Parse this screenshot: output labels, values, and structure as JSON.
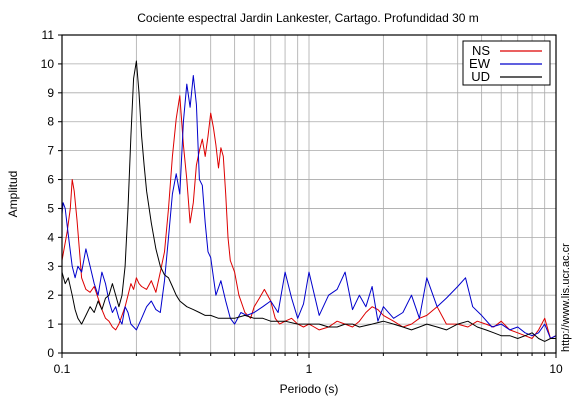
{
  "chart_data": {
    "type": "line",
    "title": "Cociente espectral Jardin Lankester, Cartago. Profundidad 30 m",
    "xlabel": "Periodo (s)",
    "ylabel": "Amplitud",
    "xscale": "log",
    "xlim": [
      0.1,
      10
    ],
    "ylim": [
      0,
      11
    ],
    "x_tick_labels": [
      {
        "value": 0.1,
        "label": "0.1"
      },
      {
        "value": 1,
        "label": "1"
      },
      {
        "value": 10,
        "label": "10"
      }
    ],
    "y_ticks": [
      0,
      1,
      2,
      3,
      4,
      5,
      6,
      7,
      8,
      9,
      10,
      11
    ],
    "grid": true,
    "legend_position": "top-right",
    "side_text": "http://www.lis.ucr.ac.cr",
    "series": [
      {
        "name": "NS",
        "color": "#dd0000",
        "x": [
          0.1,
          0.102,
          0.105,
          0.108,
          0.11,
          0.112,
          0.115,
          0.118,
          0.12,
          0.125,
          0.13,
          0.135,
          0.14,
          0.145,
          0.15,
          0.155,
          0.16,
          0.165,
          0.17,
          0.175,
          0.18,
          0.185,
          0.19,
          0.195,
          0.2,
          0.205,
          0.21,
          0.22,
          0.23,
          0.24,
          0.25,
          0.26,
          0.27,
          0.28,
          0.29,
          0.3,
          0.31,
          0.32,
          0.33,
          0.34,
          0.35,
          0.36,
          0.37,
          0.38,
          0.39,
          0.4,
          0.41,
          0.42,
          0.43,
          0.44,
          0.45,
          0.46,
          0.47,
          0.48,
          0.5,
          0.52,
          0.55,
          0.58,
          0.6,
          0.63,
          0.66,
          0.7,
          0.73,
          0.76,
          0.8,
          0.85,
          0.9,
          0.95,
          1.0,
          1.05,
          1.1,
          1.2,
          1.3,
          1.4,
          1.5,
          1.6,
          1.7,
          1.8,
          1.9,
          2.0,
          2.2,
          2.4,
          2.6,
          2.8,
          3.0,
          3.3,
          3.6,
          4.0,
          4.4,
          4.8,
          5.2,
          5.6,
          6.0,
          6.5,
          7.0,
          7.5,
          8.0,
          8.5,
          9.0,
          9.5,
          10.0
        ],
        "y": [
          3.2,
          3.6,
          4.2,
          5.0,
          6.0,
          5.6,
          4.6,
          3.4,
          2.6,
          2.2,
          2.1,
          2.3,
          1.9,
          1.5,
          1.2,
          1.1,
          0.9,
          0.8,
          1.0,
          1.3,
          1.6,
          2.0,
          2.4,
          2.2,
          2.6,
          2.4,
          2.3,
          2.2,
          2.5,
          2.1,
          2.8,
          3.5,
          5.0,
          6.8,
          8.1,
          8.9,
          7.2,
          6.0,
          4.5,
          5.2,
          6.5,
          7.0,
          7.4,
          6.8,
          7.5,
          8.3,
          7.8,
          7.2,
          6.4,
          7.1,
          6.8,
          5.5,
          4.0,
          3.2,
          2.8,
          2.0,
          1.4,
          1.2,
          1.6,
          1.9,
          2.2,
          1.8,
          1.2,
          1.0,
          1.1,
          1.2,
          1.0,
          0.9,
          1.0,
          0.9,
          0.8,
          0.9,
          1.1,
          1.0,
          0.9,
          1.1,
          1.4,
          1.6,
          1.5,
          1.3,
          1.1,
          0.9,
          1.0,
          1.2,
          1.3,
          1.6,
          1.0,
          1.0,
          0.9,
          1.1,
          1.0,
          0.9,
          1.1,
          0.8,
          0.7,
          0.6,
          0.5,
          0.8,
          1.2,
          0.5,
          0.6
        ]
      },
      {
        "name": "EW",
        "color": "#0000cc",
        "x": [
          0.1,
          0.101,
          0.103,
          0.105,
          0.107,
          0.11,
          0.113,
          0.116,
          0.12,
          0.125,
          0.13,
          0.135,
          0.14,
          0.145,
          0.15,
          0.155,
          0.16,
          0.165,
          0.17,
          0.175,
          0.18,
          0.185,
          0.19,
          0.2,
          0.21,
          0.22,
          0.23,
          0.24,
          0.25,
          0.26,
          0.27,
          0.28,
          0.29,
          0.3,
          0.31,
          0.32,
          0.33,
          0.34,
          0.35,
          0.36,
          0.37,
          0.38,
          0.39,
          0.4,
          0.42,
          0.44,
          0.46,
          0.48,
          0.5,
          0.53,
          0.56,
          0.6,
          0.65,
          0.7,
          0.75,
          0.8,
          0.85,
          0.9,
          0.95,
          1.0,
          1.1,
          1.2,
          1.3,
          1.4,
          1.5,
          1.6,
          1.7,
          1.8,
          1.9,
          2.0,
          2.2,
          2.4,
          2.6,
          2.8,
          3.0,
          3.3,
          3.6,
          4.0,
          4.3,
          4.6,
          5.0,
          5.5,
          6.0,
          6.5,
          7.0,
          7.5,
          8.0,
          8.5,
          9.0,
          9.5,
          10.0
        ],
        "y": [
          4.8,
          5.2,
          5.0,
          4.4,
          3.8,
          3.0,
          2.6,
          3.0,
          2.8,
          3.6,
          3.0,
          2.4,
          2.0,
          2.8,
          2.4,
          1.8,
          1.4,
          1.6,
          1.2,
          1.0,
          1.6,
          1.4,
          1.0,
          0.8,
          1.2,
          1.6,
          1.8,
          1.5,
          1.4,
          2.5,
          4.0,
          5.5,
          6.2,
          5.5,
          8.0,
          9.3,
          8.5,
          9.6,
          8.6,
          6.0,
          5.8,
          4.5,
          3.5,
          3.3,
          2.0,
          2.5,
          1.8,
          1.2,
          1.0,
          1.4,
          1.3,
          1.4,
          1.6,
          1.8,
          1.4,
          2.8,
          1.9,
          1.2,
          1.7,
          2.8,
          1.3,
          2.0,
          2.2,
          2.8,
          1.5,
          2.0,
          1.6,
          2.3,
          1.1,
          1.6,
          1.2,
          1.4,
          2.0,
          1.2,
          2.6,
          1.6,
          1.9,
          2.3,
          2.6,
          1.6,
          1.3,
          0.9,
          1.0,
          0.8,
          0.9,
          0.7,
          0.6,
          0.7,
          1.0,
          0.5,
          0.6
        ]
      },
      {
        "name": "UD",
        "color": "#000000",
        "x": [
          0.1,
          0.103,
          0.106,
          0.11,
          0.113,
          0.116,
          0.12,
          0.125,
          0.13,
          0.135,
          0.14,
          0.145,
          0.15,
          0.155,
          0.16,
          0.165,
          0.17,
          0.175,
          0.18,
          0.185,
          0.19,
          0.195,
          0.2,
          0.205,
          0.21,
          0.215,
          0.22,
          0.23,
          0.24,
          0.25,
          0.26,
          0.27,
          0.28,
          0.29,
          0.3,
          0.32,
          0.34,
          0.36,
          0.38,
          0.4,
          0.43,
          0.46,
          0.5,
          0.55,
          0.6,
          0.65,
          0.7,
          0.75,
          0.8,
          0.9,
          1.0,
          1.1,
          1.2,
          1.3,
          1.4,
          1.5,
          1.6,
          1.8,
          2.0,
          2.2,
          2.4,
          2.6,
          2.8,
          3.0,
          3.3,
          3.6,
          4.0,
          4.4,
          4.8,
          5.2,
          5.6,
          6.0,
          6.5,
          7.0,
          7.5,
          8.0,
          8.5,
          9.0,
          9.5,
          10.0
        ],
        "y": [
          2.8,
          2.4,
          2.6,
          2.0,
          1.5,
          1.2,
          1.0,
          1.3,
          1.6,
          1.4,
          1.8,
          1.5,
          1.9,
          2.0,
          2.4,
          2.0,
          1.6,
          2.0,
          3.0,
          5.0,
          7.5,
          9.5,
          10.1,
          9.0,
          7.5,
          6.5,
          5.6,
          4.5,
          3.6,
          3.0,
          2.7,
          2.6,
          2.3,
          2.0,
          1.8,
          1.6,
          1.5,
          1.4,
          1.3,
          1.3,
          1.2,
          1.2,
          1.2,
          1.3,
          1.2,
          1.2,
          1.1,
          1.1,
          1.1,
          1.0,
          1.0,
          1.0,
          0.9,
          0.9,
          1.0,
          1.0,
          0.9,
          1.0,
          1.1,
          1.0,
          0.9,
          0.8,
          0.9,
          1.0,
          0.9,
          0.8,
          1.0,
          1.1,
          0.9,
          0.8,
          0.7,
          0.6,
          0.6,
          0.5,
          0.6,
          0.7,
          0.5,
          0.4,
          0.5,
          0.5
        ]
      }
    ]
  }
}
